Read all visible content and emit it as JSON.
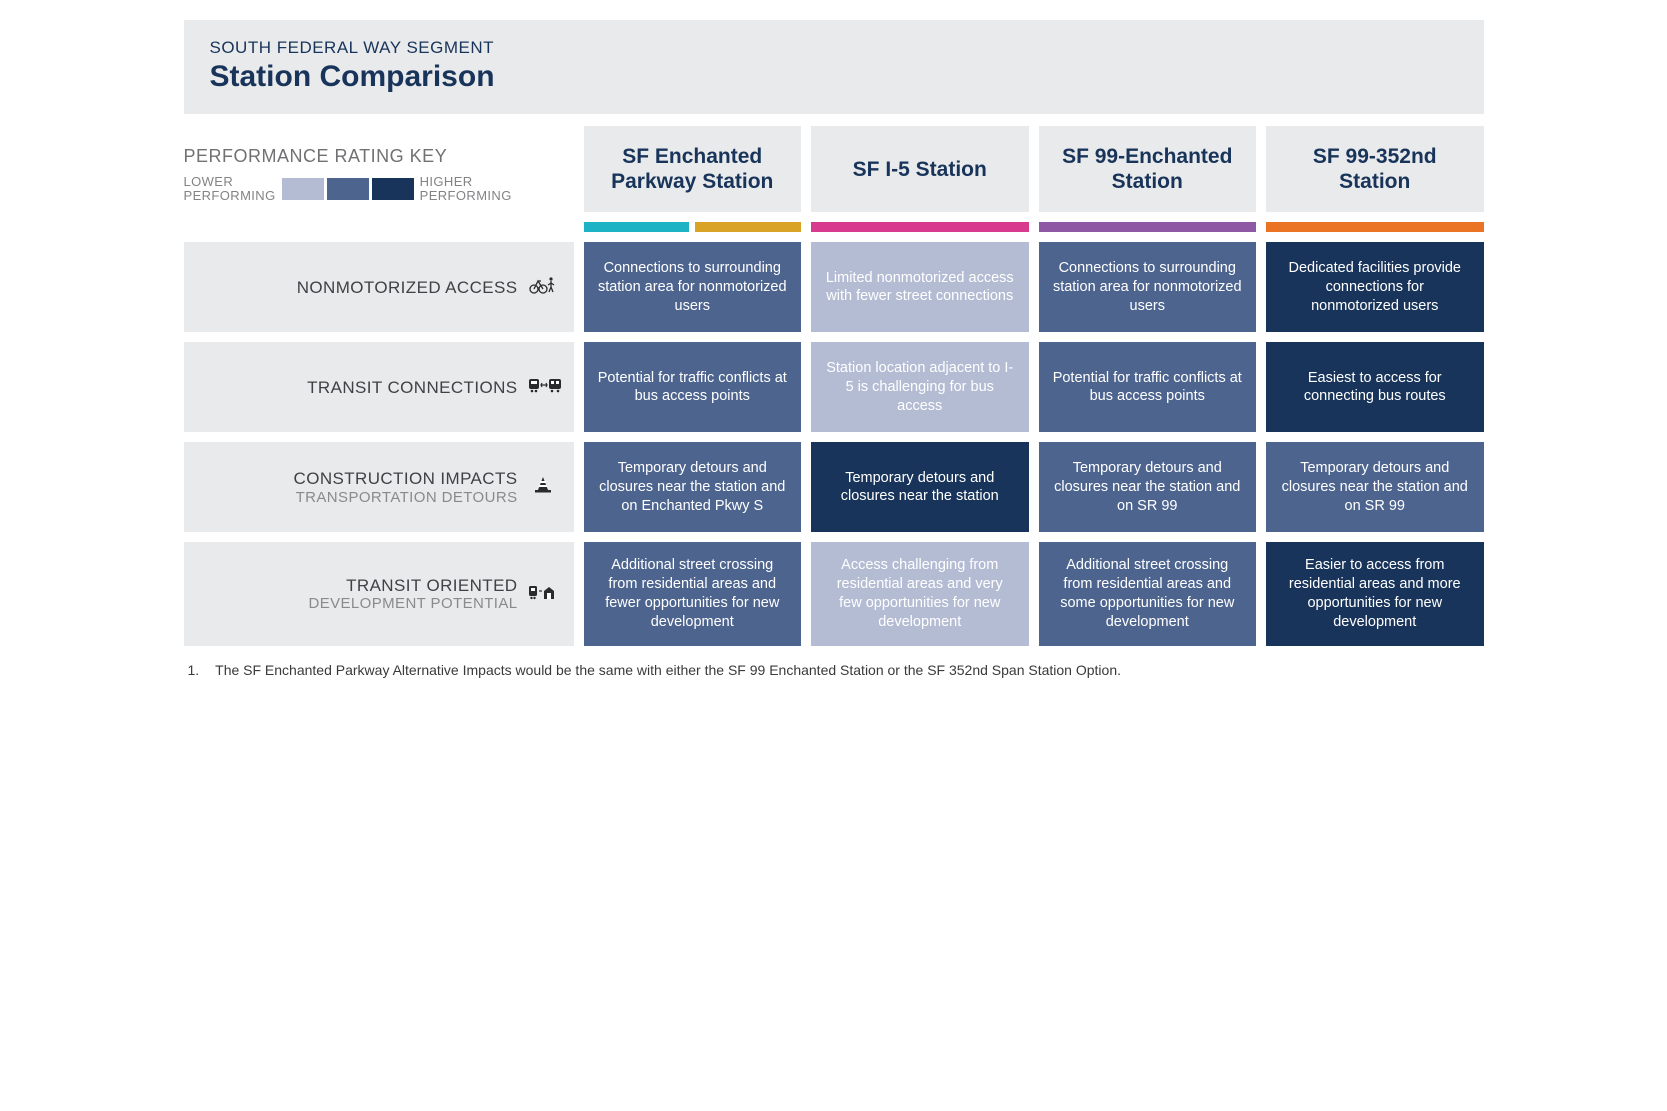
{
  "header": {
    "subtitle": "SOUTH FEDERAL WAY SEGMENT",
    "title": "Station Comparison"
  },
  "key": {
    "title": "PERFORMANCE RATING KEY",
    "low_label_1": "LOWER",
    "low_label_2": "PERFORMING",
    "high_label_1": "HIGHER",
    "high_label_2": "PERFORMING",
    "swatches": [
      "#b4bcd4",
      "#4d648f",
      "#18345a"
    ]
  },
  "columns": [
    {
      "label": "SF Enchanted Parkway Station",
      "bars": [
        "#1db2c4",
        "#d8a327"
      ]
    },
    {
      "label": "SF I-5 Station",
      "bars": [
        "#d83b8e"
      ]
    },
    {
      "label": "SF 99-Enchanted Station",
      "bars": [
        "#8e58a5"
      ]
    },
    {
      "label": "SF 99-352nd Station",
      "bars": [
        "#ea7424"
      ]
    }
  ],
  "rating_colors": {
    "low": "#b4bcd4",
    "mid": "#4d648f",
    "high": "#18345a"
  },
  "rows": [
    {
      "label": "NONMOTORIZED ACCESS",
      "sub": "",
      "icon": "bike-walk-icon",
      "cells": [
        {
          "rating": "mid",
          "text": "Connections to surrounding station area for nonmotorized users"
        },
        {
          "rating": "low",
          "text": "Limited nonmotorized access with fewer street connections"
        },
        {
          "rating": "mid",
          "text": "Connections to surrounding station area for nonmotorized users"
        },
        {
          "rating": "high",
          "text": "Dedicated facilities provide connections for nonmotorized users"
        }
      ]
    },
    {
      "label": "TRANSIT CONNECTIONS",
      "sub": "",
      "icon": "train-bus-icon",
      "cells": [
        {
          "rating": "mid",
          "text": "Potential for traffic conflicts at bus access points"
        },
        {
          "rating": "low",
          "text": "Station location adjacent to I-5 is challenging for bus access"
        },
        {
          "rating": "mid",
          "text": "Potential for traffic conflicts at bus access points"
        },
        {
          "rating": "high",
          "text": "Easiest to access for connecting bus routes"
        }
      ]
    },
    {
      "label": "CONSTRUCTION IMPACTS",
      "sub": "TRANSPORTATION DETOURS",
      "icon": "cone-icon",
      "cells": [
        {
          "rating": "mid",
          "text": "Temporary detours and closures near the station and on Enchanted Pkwy S"
        },
        {
          "rating": "high",
          "text": "Temporary detours and closures near the station"
        },
        {
          "rating": "mid",
          "text": "Temporary detours and closures near the station and on SR 99"
        },
        {
          "rating": "mid",
          "text": "Temporary detours and closures near the station and on SR 99"
        }
      ]
    },
    {
      "label": "TRANSIT ORIENTED",
      "sub": "DEVELOPMENT POTENTIAL",
      "icon": "tod-icon",
      "cells": [
        {
          "rating": "mid",
          "text": "Additional street crossing from residential areas and fewer opportunities for new development"
        },
        {
          "rating": "low",
          "text": "Access challenging from residential areas and very few opportunities for new development"
        },
        {
          "rating": "mid",
          "text": "Additional street crossing from residential areas and some opportunities for new development"
        },
        {
          "rating": "high",
          "text": "Easier to access from residential areas and more opportunities for new development"
        }
      ]
    }
  ],
  "footnote": {
    "num": "1.",
    "text": "The SF Enchanted Parkway Alternative Impacts would be the same with either the SF 99 Enchanted Station or the SF 352nd Span Station Option."
  }
}
